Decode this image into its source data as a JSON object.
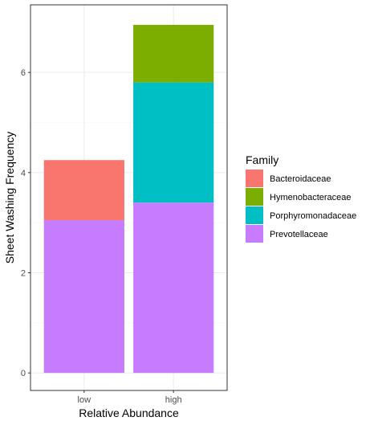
{
  "chart_data": {
    "type": "bar",
    "stacked": true,
    "categories": [
      "low",
      "high"
    ],
    "series": [
      {
        "name": "Bacteroidaceae",
        "color": "#F8766D",
        "values": [
          1.2,
          0
        ]
      },
      {
        "name": "Hymenobacteraceae",
        "color": "#7CAE00",
        "values": [
          0,
          1.15
        ]
      },
      {
        "name": "Porphyromonadaceae",
        "color": "#00BFC4",
        "values": [
          0,
          2.4
        ]
      },
      {
        "name": "Prevotellaceae",
        "color": "#C77CFF",
        "values": [
          3.05,
          3.4
        ]
      }
    ],
    "stack_order_bottom_to_top": [
      "Prevotellaceae",
      "Porphyromonadaceae",
      "Hymenobacteraceae",
      "Bacteroidaceae"
    ],
    "xlabel": "Relative Abundance",
    "ylabel": "Sheet Washing Frequency",
    "ylim": [
      -0.35,
      7.35
    ],
    "yticks": [
      0,
      2,
      4,
      6
    ],
    "grid": true,
    "legend": {
      "title": "Family",
      "placement": "right"
    },
    "theme": {
      "panel_border": "#333333",
      "grid_major": "#ebebeb",
      "grid_minor": "#f5f5f5"
    }
  }
}
